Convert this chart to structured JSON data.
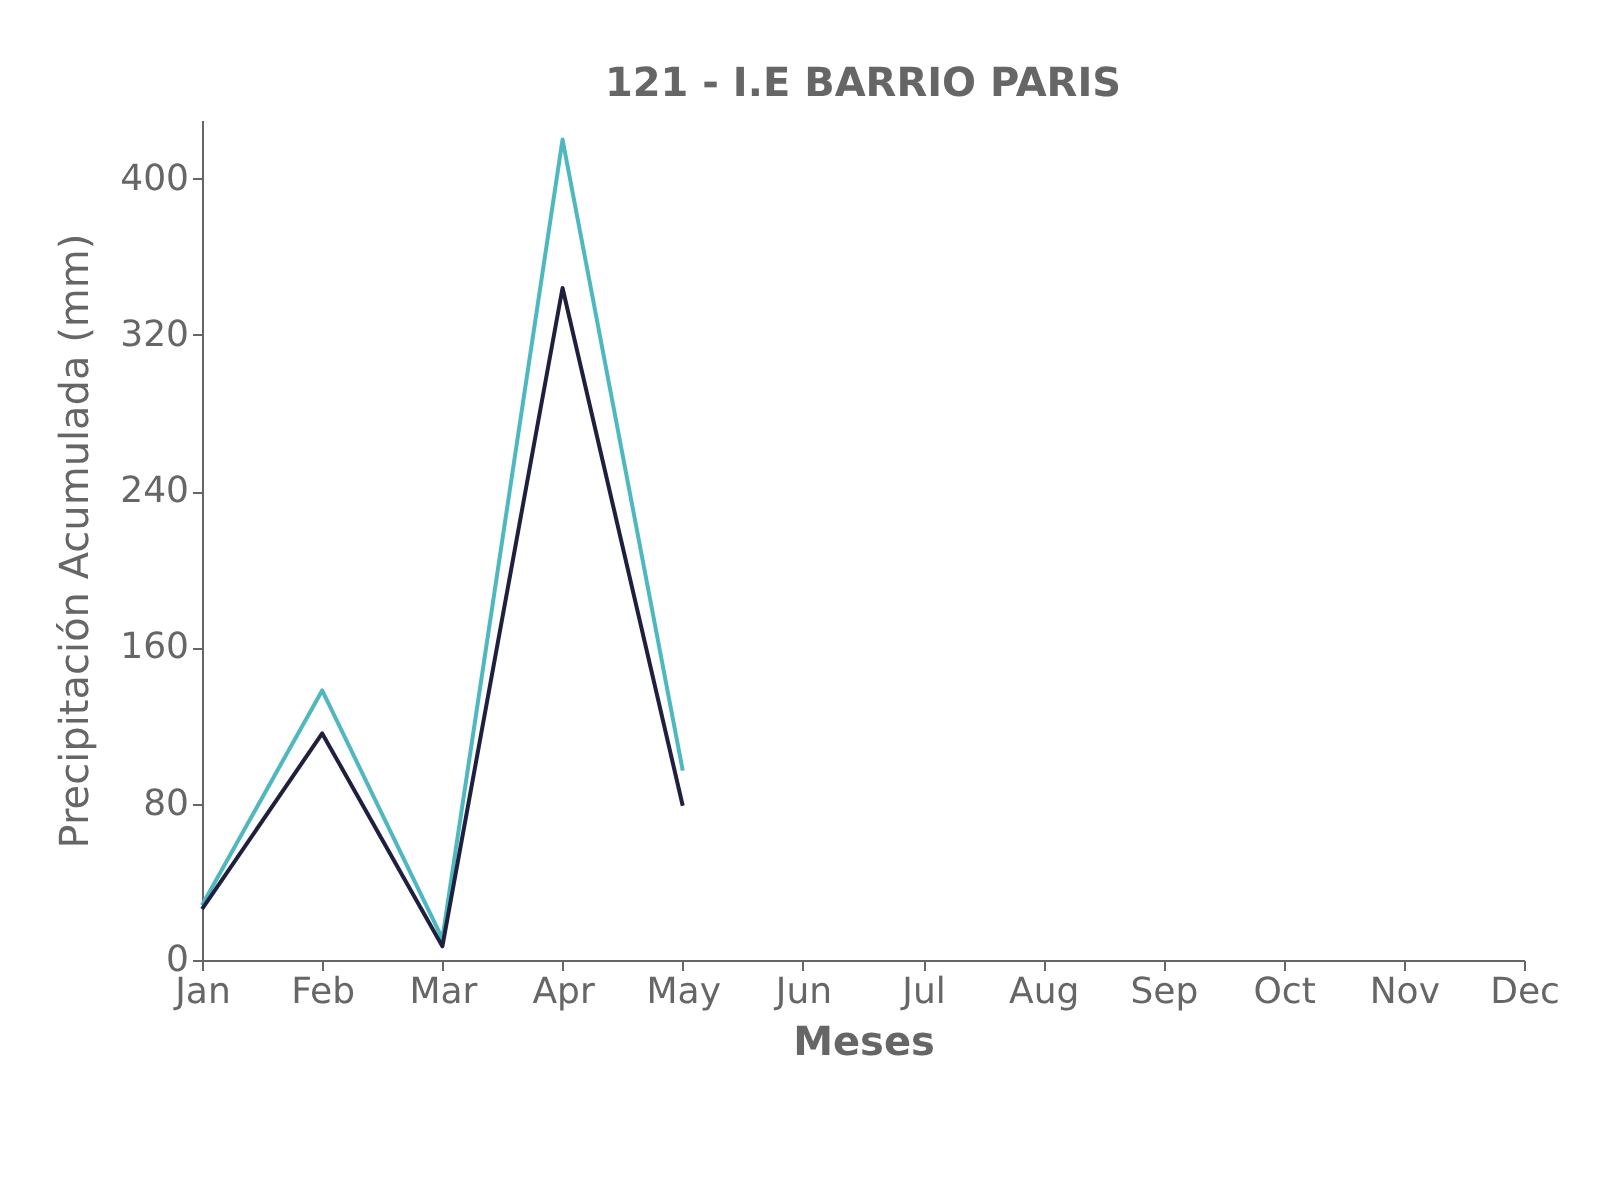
{
  "chart_data": {
    "type": "line",
    "title": "121 - I.E BARRIO PARIS",
    "xlabel": "Meses",
    "ylabel": "Precipitación Acumulada (mm)",
    "categories": [
      "Jan",
      "Feb",
      "Mar",
      "Apr",
      "May",
      "Jun",
      "Jul",
      "Aug",
      "Sep",
      "Oct",
      "Nov",
      "Dec"
    ],
    "series": [
      {
        "color": "#4db8c0",
        "values": [
          28,
          138,
          11,
          420,
          97,
          null,
          null,
          null,
          null,
          null,
          null,
          null
        ]
      },
      {
        "color": "#1f1f3f",
        "values": [
          26,
          116,
          7,
          344,
          79,
          null,
          null,
          null,
          null,
          null,
          null,
          null
        ]
      }
    ],
    "ylim": [
      0,
      430
    ],
    "yticks": [
      0,
      80,
      160,
      240,
      320,
      400
    ],
    "grid": false,
    "legend": false,
    "marker": "none",
    "line_style": "solid"
  }
}
